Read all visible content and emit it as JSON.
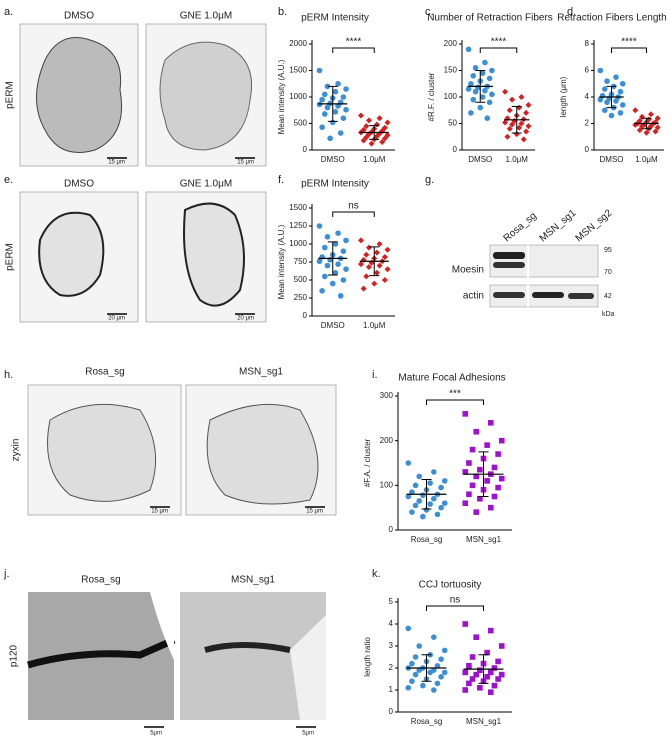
{
  "panel_labels": [
    "a.",
    "b.",
    "c.",
    "d.",
    "e.",
    "f.",
    "g.",
    "h.",
    "i.",
    "j.",
    "k."
  ],
  "images": {
    "a": {
      "col1": "DMSO",
      "col2": "GNE 1.0μM",
      "row": "pERM",
      "scale1": "15 μm",
      "scale2": "15 μm"
    },
    "e": {
      "col1": "DMSO",
      "col2": "GNE 1.0μM",
      "row": "pERM",
      "scale1": "20 μm",
      "scale2": "20 μm"
    },
    "h": {
      "col1": "Rosa_sg",
      "col2": "MSN_sg1",
      "row": "zyxin",
      "scale1": "15 μm",
      "scale2": "15 μm"
    },
    "j": {
      "col1": "Rosa_sg",
      "col2": "MSN_sg1",
      "row": "p120",
      "scale1": "5μm",
      "scale2": "5μm"
    }
  },
  "western_blot": {
    "lanes": [
      "Rosa_sg",
      "MSN_sg1",
      "MSN_sg2"
    ],
    "rows": [
      "Moesin",
      "actin"
    ],
    "markers": [
      "95",
      "70",
      "42"
    ],
    "unit": "kDa"
  },
  "chart_data": [
    {
      "type": "dotplot",
      "title": "pERM Intensity",
      "y_label": "Mean intensity (A.U.)",
      "categories": [
        "DMSO",
        "1.0μM"
      ],
      "ylim": [
        0,
        2000
      ],
      "yticks": [
        0,
        500,
        1000,
        1500,
        2000
      ],
      "significance": "****",
      "groups": [
        {
          "color": "#3a8fd8",
          "marker": "circle",
          "values": [
            1500,
            1250,
            1200,
            1150,
            1100,
            1050,
            1000,
            980,
            950,
            900,
            880,
            860,
            830,
            800,
            760,
            720,
            680,
            600,
            520,
            430,
            320,
            220
          ],
          "mean": 870,
          "sd": 330
        },
        {
          "color": "#d62020",
          "marker": "diamond",
          "values": [
            650,
            600,
            560,
            520,
            480,
            450,
            420,
            400,
            380,
            360,
            340,
            330,
            310,
            300,
            280,
            260,
            240,
            220,
            200,
            180,
            150,
            120
          ],
          "mean": 330,
          "sd": 130
        }
      ]
    },
    {
      "type": "dotplot",
      "title": "Number of Retraction Fibers",
      "y_label": "#R.F. / cluster",
      "categories": [
        "DMSO",
        "1.0μM"
      ],
      "ylim": [
        0,
        200
      ],
      "yticks": [
        0,
        50,
        100,
        150,
        200
      ],
      "significance": "****",
      "groups": [
        {
          "color": "#3a8fd8",
          "marker": "circle",
          "values": [
            190,
            165,
            155,
            150,
            145,
            140,
            135,
            130,
            125,
            120,
            118,
            115,
            112,
            110,
            105,
            100,
            95,
            90,
            80,
            70,
            60
          ],
          "mean": 120,
          "sd": 30
        },
        {
          "color": "#d62020",
          "marker": "diamond",
          "values": [
            110,
            100,
            95,
            85,
            80,
            75,
            70,
            65,
            60,
            58,
            55,
            52,
            50,
            48,
            45,
            42,
            40,
            35,
            30,
            25,
            20
          ],
          "mean": 57,
          "sd": 25
        }
      ]
    },
    {
      "type": "dotplot",
      "title": "Retraction Fibers Length",
      "y_label": "length (μm)",
      "categories": [
        "DMSO",
        "1.0μM"
      ],
      "ylim": [
        0,
        8
      ],
      "yticks": [
        0,
        2,
        4,
        6,
        8
      ],
      "significance": "****",
      "groups": [
        {
          "color": "#3a8fd8",
          "marker": "circle",
          "values": [
            6.0,
            5.5,
            5.2,
            5.0,
            4.8,
            4.6,
            4.4,
            4.2,
            4.1,
            4.0,
            3.9,
            3.8,
            3.7,
            3.6,
            3.4,
            3.2,
            3.0,
            2.8,
            2.6
          ],
          "mean": 4.0,
          "sd": 0.8
        },
        {
          "color": "#d62020",
          "marker": "diamond",
          "values": [
            3.0,
            2.7,
            2.5,
            2.4,
            2.3,
            2.2,
            2.1,
            2.1,
            2.0,
            2.0,
            1.9,
            1.9,
            1.8,
            1.8,
            1.7,
            1.6,
            1.5,
            1.4,
            1.3
          ],
          "mean": 2.0,
          "sd": 0.4
        }
      ]
    },
    {
      "type": "dotplot",
      "title": "pERM Intensity",
      "y_label": "Mean intensity (A.U.)",
      "categories": [
        "DMSO",
        "1.0μM"
      ],
      "ylim": [
        0,
        1500
      ],
      "yticks": [
        0,
        250,
        500,
        750,
        1000,
        1250,
        1500
      ],
      "significance": "ns",
      "groups": [
        {
          "color": "#3a8fd8",
          "marker": "circle",
          "values": [
            1250,
            1150,
            1100,
            1050,
            1000,
            950,
            900,
            850,
            820,
            800,
            780,
            760,
            720,
            700,
            650,
            600,
            550,
            500,
            450,
            350,
            280
          ],
          "mean": 800,
          "sd": 230
        },
        {
          "color": "#d62020",
          "marker": "diamond",
          "values": [
            1050,
            1000,
            950,
            920,
            880,
            850,
            820,
            800,
            780,
            760,
            740,
            720,
            700,
            680,
            650,
            600,
            550,
            500,
            450,
            380
          ],
          "mean": 760,
          "sd": 200
        }
      ]
    },
    {
      "type": "dotplot",
      "title": "Mature Focal Adhesions",
      "y_label": "#F.A. / cluster",
      "categories": [
        "Rosa_sg",
        "MSN_sg1"
      ],
      "ylim": [
        0,
        300
      ],
      "yticks": [
        0,
        100,
        200,
        300
      ],
      "significance": "***",
      "groups": [
        {
          "color": "#3a8fd8",
          "marker": "circle",
          "values": [
            150,
            130,
            120,
            110,
            105,
            100,
            95,
            90,
            85,
            80,
            78,
            75,
            70,
            65,
            60,
            58,
            55,
            50,
            45,
            40,
            35,
            30
          ],
          "mean": 80,
          "sd": 33
        },
        {
          "color": "#a010d0",
          "marker": "square",
          "values": [
            260,
            240,
            220,
            200,
            190,
            180,
            170,
            160,
            150,
            140,
            135,
            130,
            125,
            120,
            115,
            110,
            100,
            95,
            90,
            80,
            75,
            70,
            60,
            50,
            40
          ],
          "mean": 125,
          "sd": 50
        }
      ]
    },
    {
      "type": "dotplot",
      "title": "CCJ tortuosity",
      "y_label": "length ratio",
      "categories": [
        "Rosa_sg",
        "MSN_sg1"
      ],
      "ylim": [
        0,
        5
      ],
      "yticks": [
        0,
        1,
        2,
        3,
        4,
        5
      ],
      "significance": "ns",
      "groups": [
        {
          "color": "#3a8fd8",
          "marker": "circle",
          "values": [
            3.8,
            3.4,
            3.0,
            2.8,
            2.6,
            2.5,
            2.4,
            2.3,
            2.2,
            2.1,
            2.0,
            2.0,
            1.9,
            1.9,
            1.8,
            1.8,
            1.7,
            1.6,
            1.5,
            1.4,
            1.3,
            1.2,
            1.1,
            1.0
          ],
          "mean": 2.0,
          "sd": 0.6
        },
        {
          "color": "#a010d0",
          "marker": "square",
          "values": [
            4.0,
            3.7,
            3.4,
            3.0,
            2.7,
            2.5,
            2.3,
            2.2,
            2.1,
            2.0,
            1.9,
            1.8,
            1.8,
            1.7,
            1.7,
            1.6,
            1.5,
            1.5,
            1.4,
            1.3,
            1.2,
            1.1,
            1.0,
            0.9
          ],
          "mean": 1.95,
          "sd": 0.65
        }
      ]
    }
  ]
}
